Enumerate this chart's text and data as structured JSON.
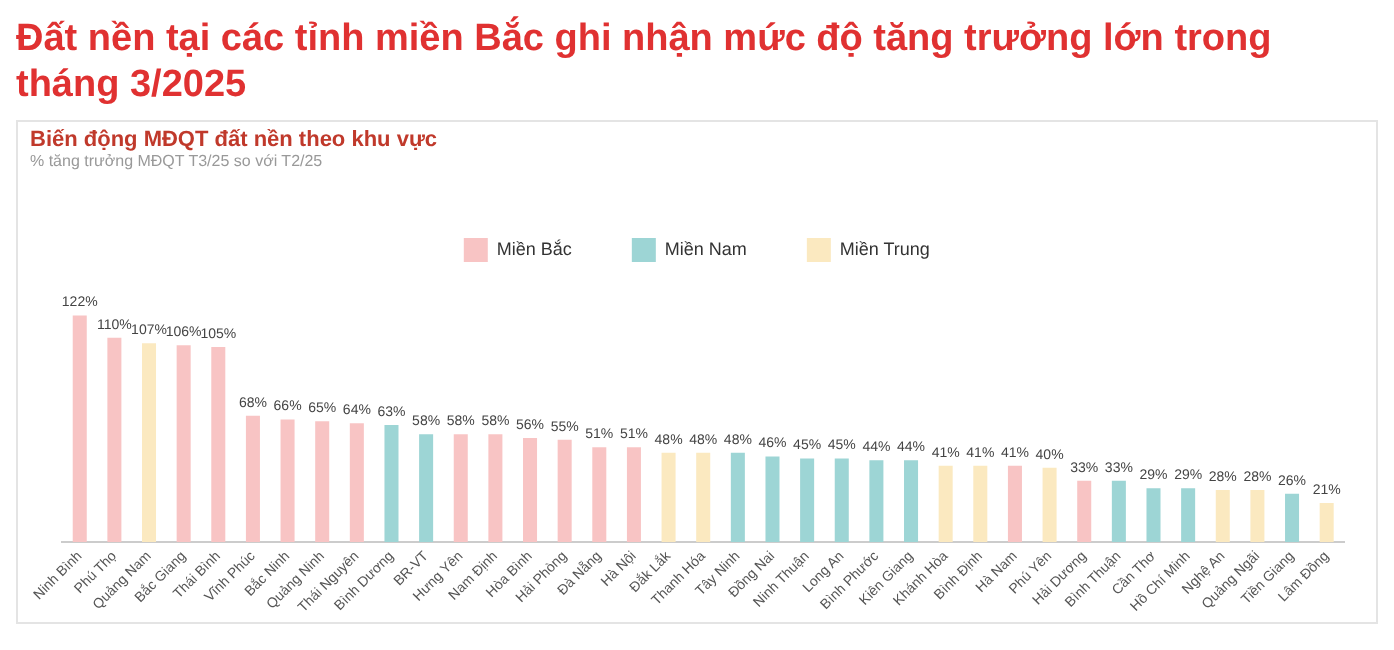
{
  "chart_data": {
    "type": "bar",
    "title": "Đất nền tại các tỉnh miền Bắc ghi nhận mức độ tăng trưởng lớn trong tháng 3/2025",
    "subtitle": "Biến động MĐQT đất nền theo khu vực",
    "annotations": [
      "% tăng trưởng MĐQT T3/25 so với T2/25"
    ],
    "categories": [
      "Ninh Bình",
      "Phú Thọ",
      "Quảng Nam",
      "Bắc Giang",
      "Thái Bình",
      "Vĩnh Phúc",
      "Bắc Ninh",
      "Quảng Ninh",
      "Thái Nguyên",
      "Bình Dương",
      "BR-VT",
      "Hưng Yên",
      "Nam Định",
      "Hòa Bình",
      "Hải Phòng",
      "Đà Nẵng",
      "Hà Nội",
      "Đắk Lắk",
      "Thanh Hóa",
      "Tây Ninh",
      "Đồng Nai",
      "Ninh Thuận",
      "Long An",
      "Bình Phước",
      "Kiên Giang",
      "Khánh Hòa",
      "Bình Định",
      "Hà Nam",
      "Phú Yên",
      "Hải Dương",
      "Bình Thuận",
      "Cần Thơ",
      "Hồ Chí Minh",
      "Nghệ An",
      "Quảng Ngãi",
      "Tiền Giang",
      "Lâm Đồng"
    ],
    "legend": "top",
    "tick_labels": "x",
    "grid": false,
    "series": [
      {
        "name": "Miền Bắc",
        "color": "#f8c4c4",
        "values": [
          122,
          110,
          null,
          106,
          105,
          68,
          66,
          65,
          64,
          null,
          null,
          58,
          58,
          56,
          55,
          51,
          51,
          null,
          null,
          null,
          null,
          null,
          null,
          null,
          null,
          null,
          null,
          41,
          null,
          33,
          null,
          null,
          null,
          null,
          null,
          null,
          null
        ],
        "value_labels": [
          "122%",
          "110%",
          null,
          "106%",
          "105%",
          "68%",
          "66%",
          "65%",
          "64%",
          null,
          null,
          "58%",
          "58%",
          "56%",
          "55%",
          "51%",
          "51%",
          null,
          null,
          null,
          null,
          null,
          null,
          null,
          null,
          null,
          null,
          "41%",
          null,
          "33%",
          null,
          null,
          null,
          null,
          null,
          null,
          null
        ]
      },
      {
        "name": "Miền Nam",
        "color": "#9dd5d5",
        "values": [
          null,
          null,
          null,
          null,
          null,
          null,
          null,
          null,
          null,
          63,
          58,
          null,
          null,
          null,
          null,
          null,
          null,
          null,
          null,
          48,
          46,
          45,
          45,
          44,
          44,
          null,
          null,
          null,
          null,
          null,
          33,
          29,
          29,
          null,
          null,
          26,
          null
        ],
        "value_labels": [
          null,
          null,
          null,
          null,
          null,
          null,
          null,
          null,
          null,
          "63%",
          "58%",
          null,
          null,
          null,
          null,
          null,
          null,
          null,
          null,
          "48%",
          "46%",
          "45%",
          "45%",
          "44%",
          "44%",
          null,
          null,
          null,
          null,
          null,
          "33%",
          "29%",
          "29%",
          null,
          null,
          "26%",
          null
        ]
      },
      {
        "name": "Miền Trung",
        "color": "#fbe9c0",
        "values": [
          null,
          null,
          107,
          null,
          null,
          null,
          null,
          null,
          null,
          null,
          null,
          null,
          null,
          null,
          null,
          null,
          null,
          48,
          48,
          null,
          null,
          null,
          null,
          null,
          null,
          41,
          41,
          null,
          40,
          null,
          null,
          null,
          null,
          28,
          28,
          null,
          21
        ],
        "value_labels": [
          null,
          null,
          "107%",
          null,
          null,
          null,
          null,
          null,
          null,
          null,
          null,
          null,
          null,
          null,
          null,
          null,
          null,
          "48%",
          "48%",
          null,
          null,
          null,
          null,
          null,
          null,
          "41%",
          "41%",
          null,
          "40%",
          null,
          null,
          null,
          null,
          "28%",
          "28%",
          null,
          "21%"
        ]
      }
    ]
  }
}
